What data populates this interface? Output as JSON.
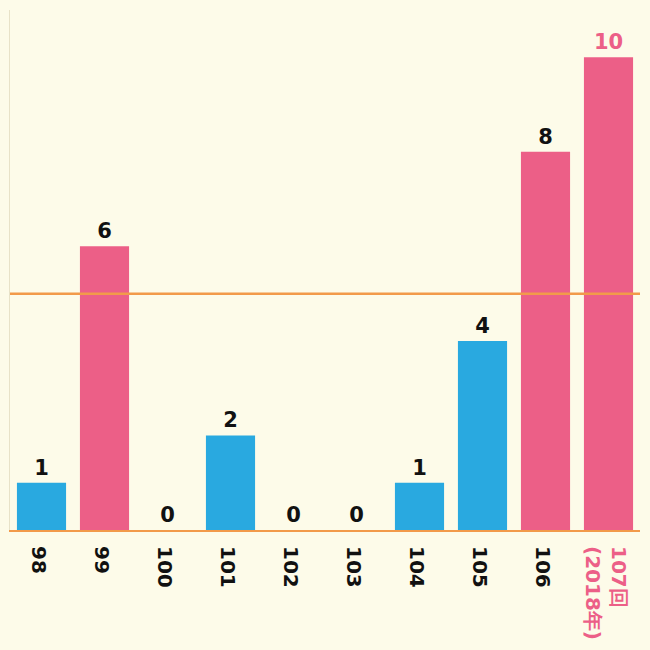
{
  "chart_data": {
    "type": "bar",
    "categories": [
      "98",
      "99",
      "100",
      "101",
      "102",
      "103",
      "104",
      "105",
      "106",
      "107回\n(2018年)"
    ],
    "values": [
      1,
      6,
      0,
      2,
      0,
      0,
      1,
      4,
      8,
      10
    ],
    "colors": [
      "#29a9e0",
      "#ec5f87",
      "#29a9e0",
      "#29a9e0",
      "#29a9e0",
      "#29a9e0",
      "#29a9e0",
      "#29a9e0",
      "#ec5f87",
      "#ec5f87"
    ],
    "ylim": [
      0,
      11
    ],
    "tick_labels": "x",
    "data_labels": true,
    "grid": false,
    "hline": {
      "value": 5,
      "color": "#f29a4a"
    }
  }
}
